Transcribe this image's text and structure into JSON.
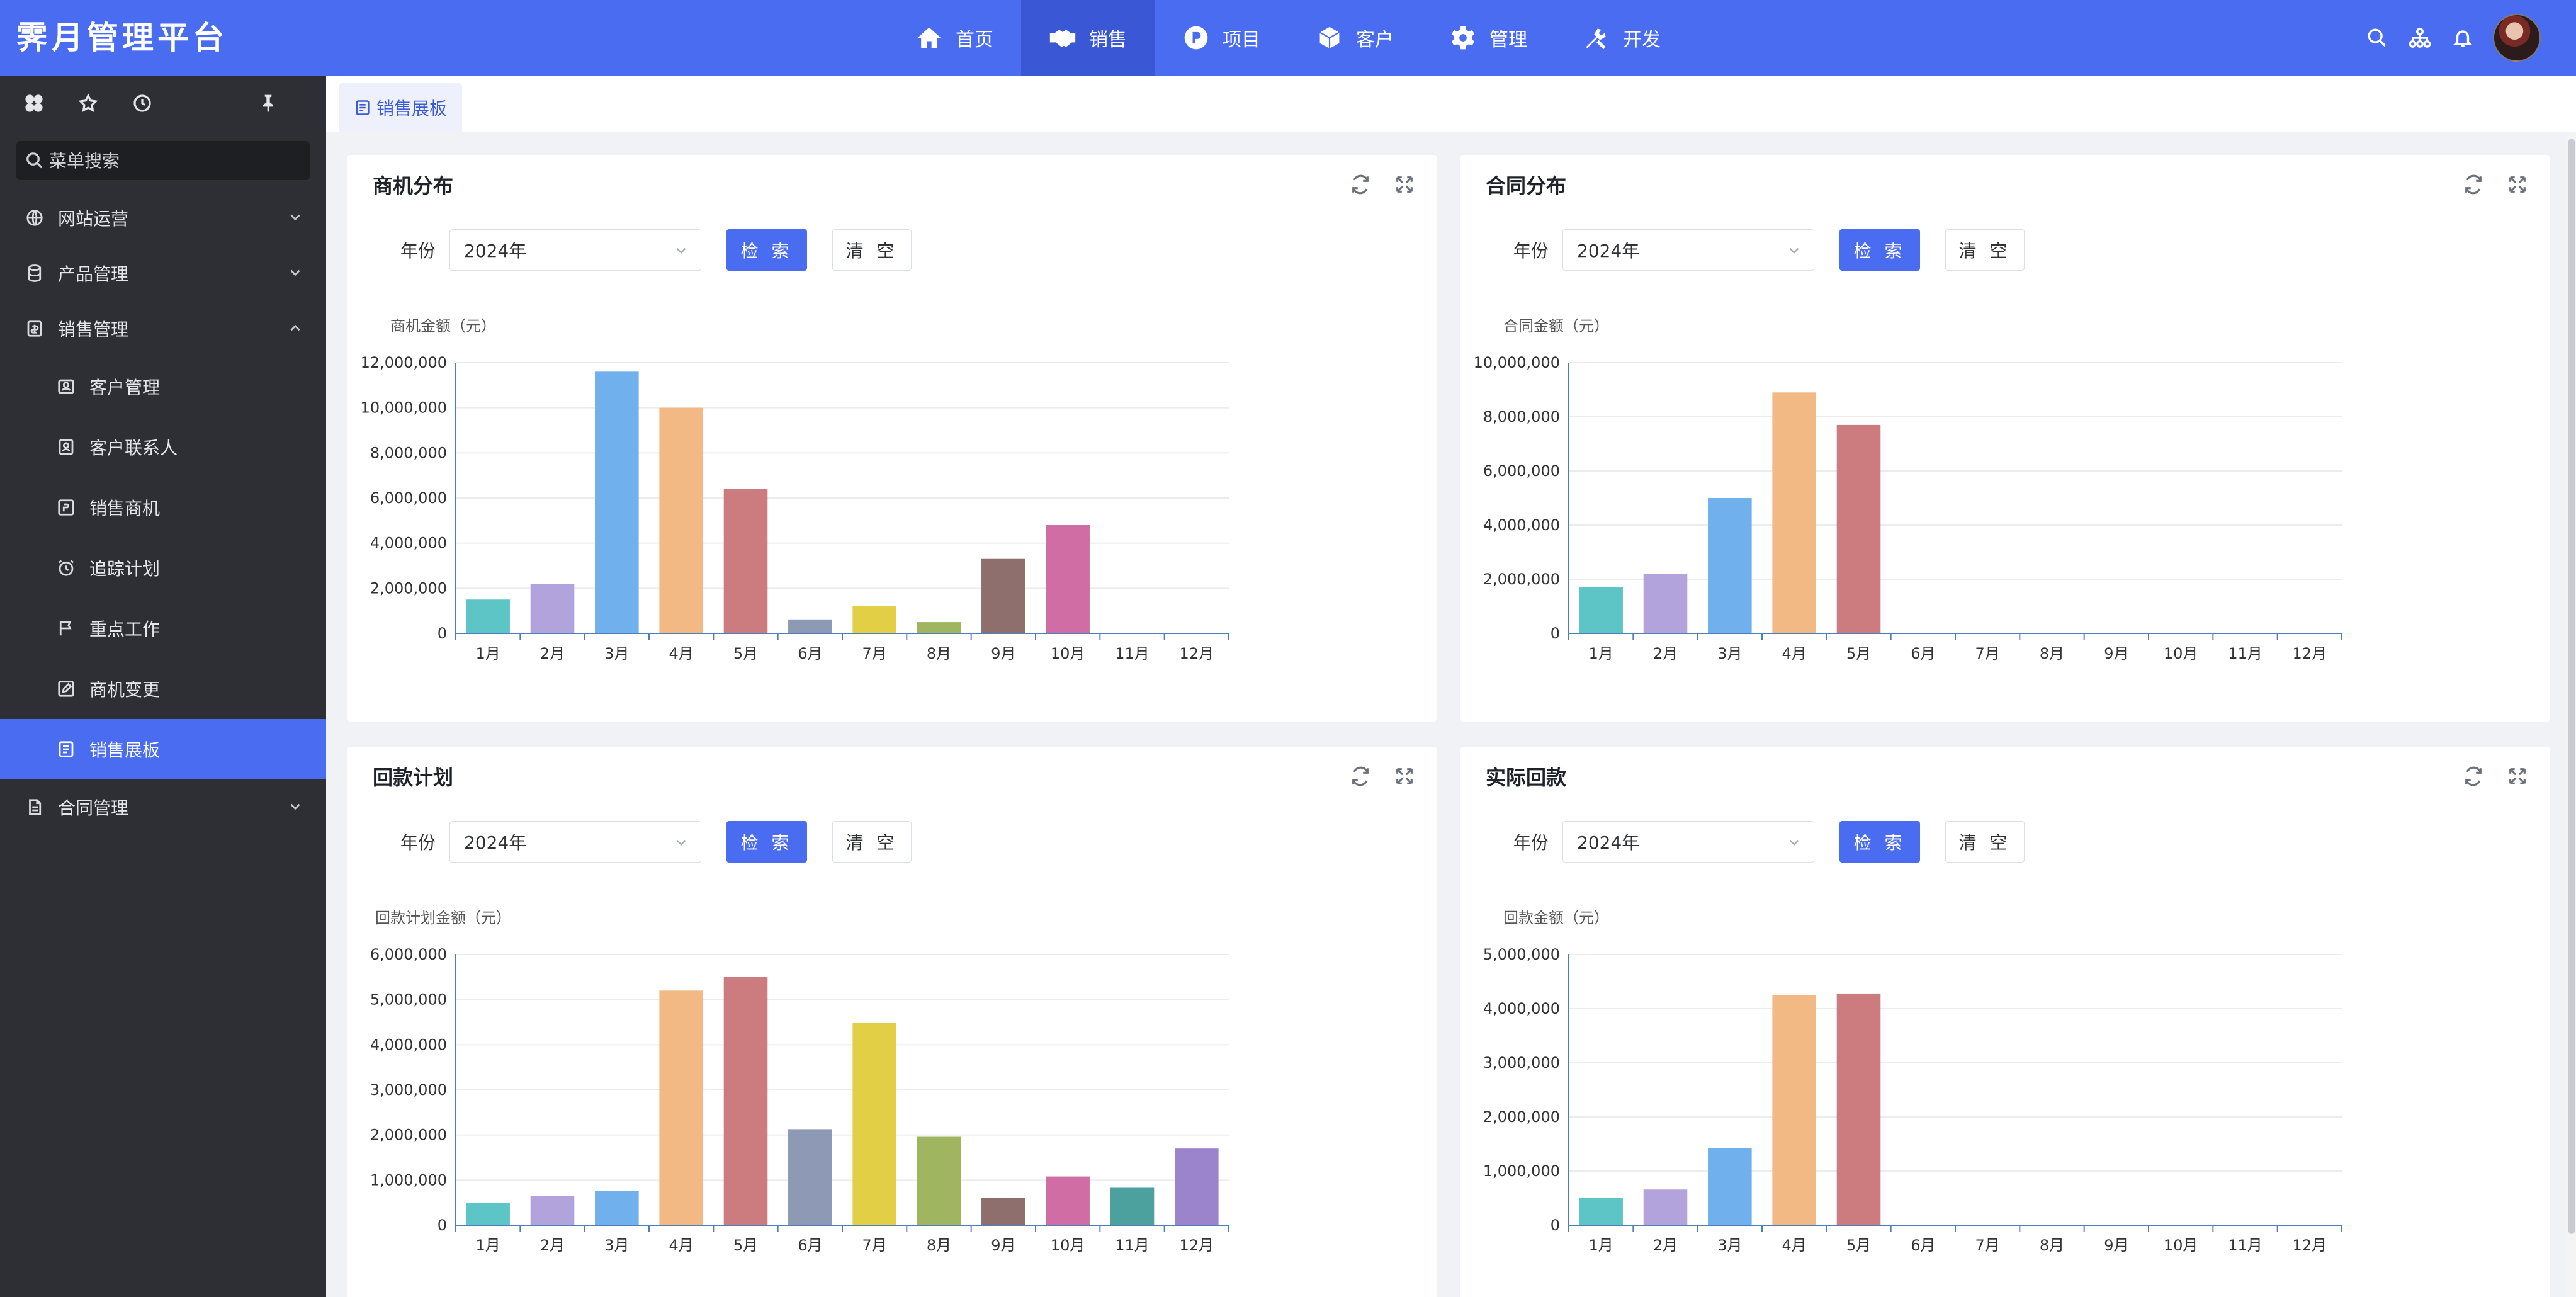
{
  "app": {
    "logo": "霁月管理平台"
  },
  "topnav": [
    {
      "label": "首页",
      "icon": "home-icon"
    },
    {
      "label": "销售",
      "icon": "handshake-icon",
      "active": true
    },
    {
      "label": "项目",
      "icon": "project-icon"
    },
    {
      "label": "客户",
      "icon": "cube-icon"
    },
    {
      "label": "管理",
      "icon": "gear-icon"
    },
    {
      "label": "开发",
      "icon": "tools-icon"
    }
  ],
  "header_tools": [
    "search-icon",
    "sitemap-icon",
    "bell-icon",
    "avatar"
  ],
  "sidebar": {
    "search_placeholder": "菜单搜索",
    "groups": [
      {
        "label": "网站运营",
        "expanded": false
      },
      {
        "label": "产品管理",
        "expanded": false
      },
      {
        "label": "销售管理",
        "expanded": true
      },
      {
        "label": "合同管理",
        "expanded": false
      }
    ],
    "sales_items": [
      {
        "label": "客户管理"
      },
      {
        "label": "客户联系人"
      },
      {
        "label": "销售商机"
      },
      {
        "label": "追踪计划"
      },
      {
        "label": "重点工作"
      },
      {
        "label": "商机变更"
      },
      {
        "label": "销售展板",
        "active": true
      }
    ]
  },
  "tab": {
    "label": "销售展板"
  },
  "filters": {
    "year_label": "年份",
    "year_value": "2024年",
    "search_label": "检 索",
    "clear_label": "清 空"
  },
  "colors": {
    "accent": "#4a6cf0",
    "bars": [
      "#5ec5c7",
      "#b3a3dd",
      "#70b0ec",
      "#f3b985",
      "#cc7b7f",
      "#8e9ab5",
      "#e2cf46",
      "#9fb560",
      "#8e6f6d",
      "#d06da5",
      "#4ca09e",
      "#9b84cc"
    ]
  },
  "cards": [
    {
      "title": "商机分布",
      "chart_data": {
        "type": "bar",
        "ylabel": "商机金额（元）",
        "categories": [
          "1月",
          "2月",
          "3月",
          "4月",
          "5月",
          "6月",
          "7月",
          "8月",
          "9月",
          "10月",
          "11月",
          "12月"
        ],
        "values": [
          1500000,
          2200000,
          11600000,
          10000000,
          6400000,
          620000,
          1200000,
          500000,
          3300000,
          4800000,
          0,
          0
        ],
        "ylim": [
          0,
          12000000
        ],
        "yticks": [
          "0",
          "2,000,000",
          "4,000,000",
          "6,000,000",
          "8,000,000",
          "10,000,000",
          "12,000,000"
        ]
      }
    },
    {
      "title": "合同分布",
      "chart_data": {
        "type": "bar",
        "ylabel": "合同金额（元）",
        "categories": [
          "1月",
          "2月",
          "3月",
          "4月",
          "5月",
          "6月",
          "7月",
          "8月",
          "9月",
          "10月",
          "11月",
          "12月"
        ],
        "values": [
          1700000,
          2200000,
          5000000,
          8900000,
          7700000,
          0,
          0,
          0,
          0,
          0,
          0,
          0
        ],
        "ylim": [
          0,
          10000000
        ],
        "yticks": [
          "0",
          "2,000,000",
          "4,000,000",
          "6,000,000",
          "8,000,000",
          "10,000,000"
        ]
      }
    },
    {
      "title": "回款计划",
      "chart_data": {
        "type": "bar",
        "ylabel": "回款计划金额（元）",
        "categories": [
          "1月",
          "2月",
          "3月",
          "4月",
          "5月",
          "6月",
          "7月",
          "8月",
          "9月",
          "10月",
          "11月",
          "12月"
        ],
        "values": [
          500000,
          650000,
          760000,
          5200000,
          5500000,
          2130000,
          4480000,
          1960000,
          600000,
          1080000,
          830000,
          1700000
        ],
        "ylim": [
          0,
          6000000
        ],
        "yticks": [
          "0",
          "1,000,000",
          "2,000,000",
          "3,000,000",
          "4,000,000",
          "5,000,000",
          "6,000,000"
        ]
      }
    },
    {
      "title": "实际回款",
      "chart_data": {
        "type": "bar",
        "ylabel": "回款金额（元）",
        "categories": [
          "1月",
          "2月",
          "3月",
          "4月",
          "5月",
          "6月",
          "7月",
          "8月",
          "9月",
          "10月",
          "11月",
          "12月"
        ],
        "values": [
          500000,
          660000,
          1420000,
          4250000,
          4280000,
          0,
          0,
          0,
          0,
          0,
          0,
          0
        ],
        "ylim": [
          0,
          5000000
        ],
        "yticks": [
          "0",
          "1,000,000",
          "2,000,000",
          "3,000,000",
          "4,000,000",
          "5,000,000"
        ]
      }
    }
  ]
}
